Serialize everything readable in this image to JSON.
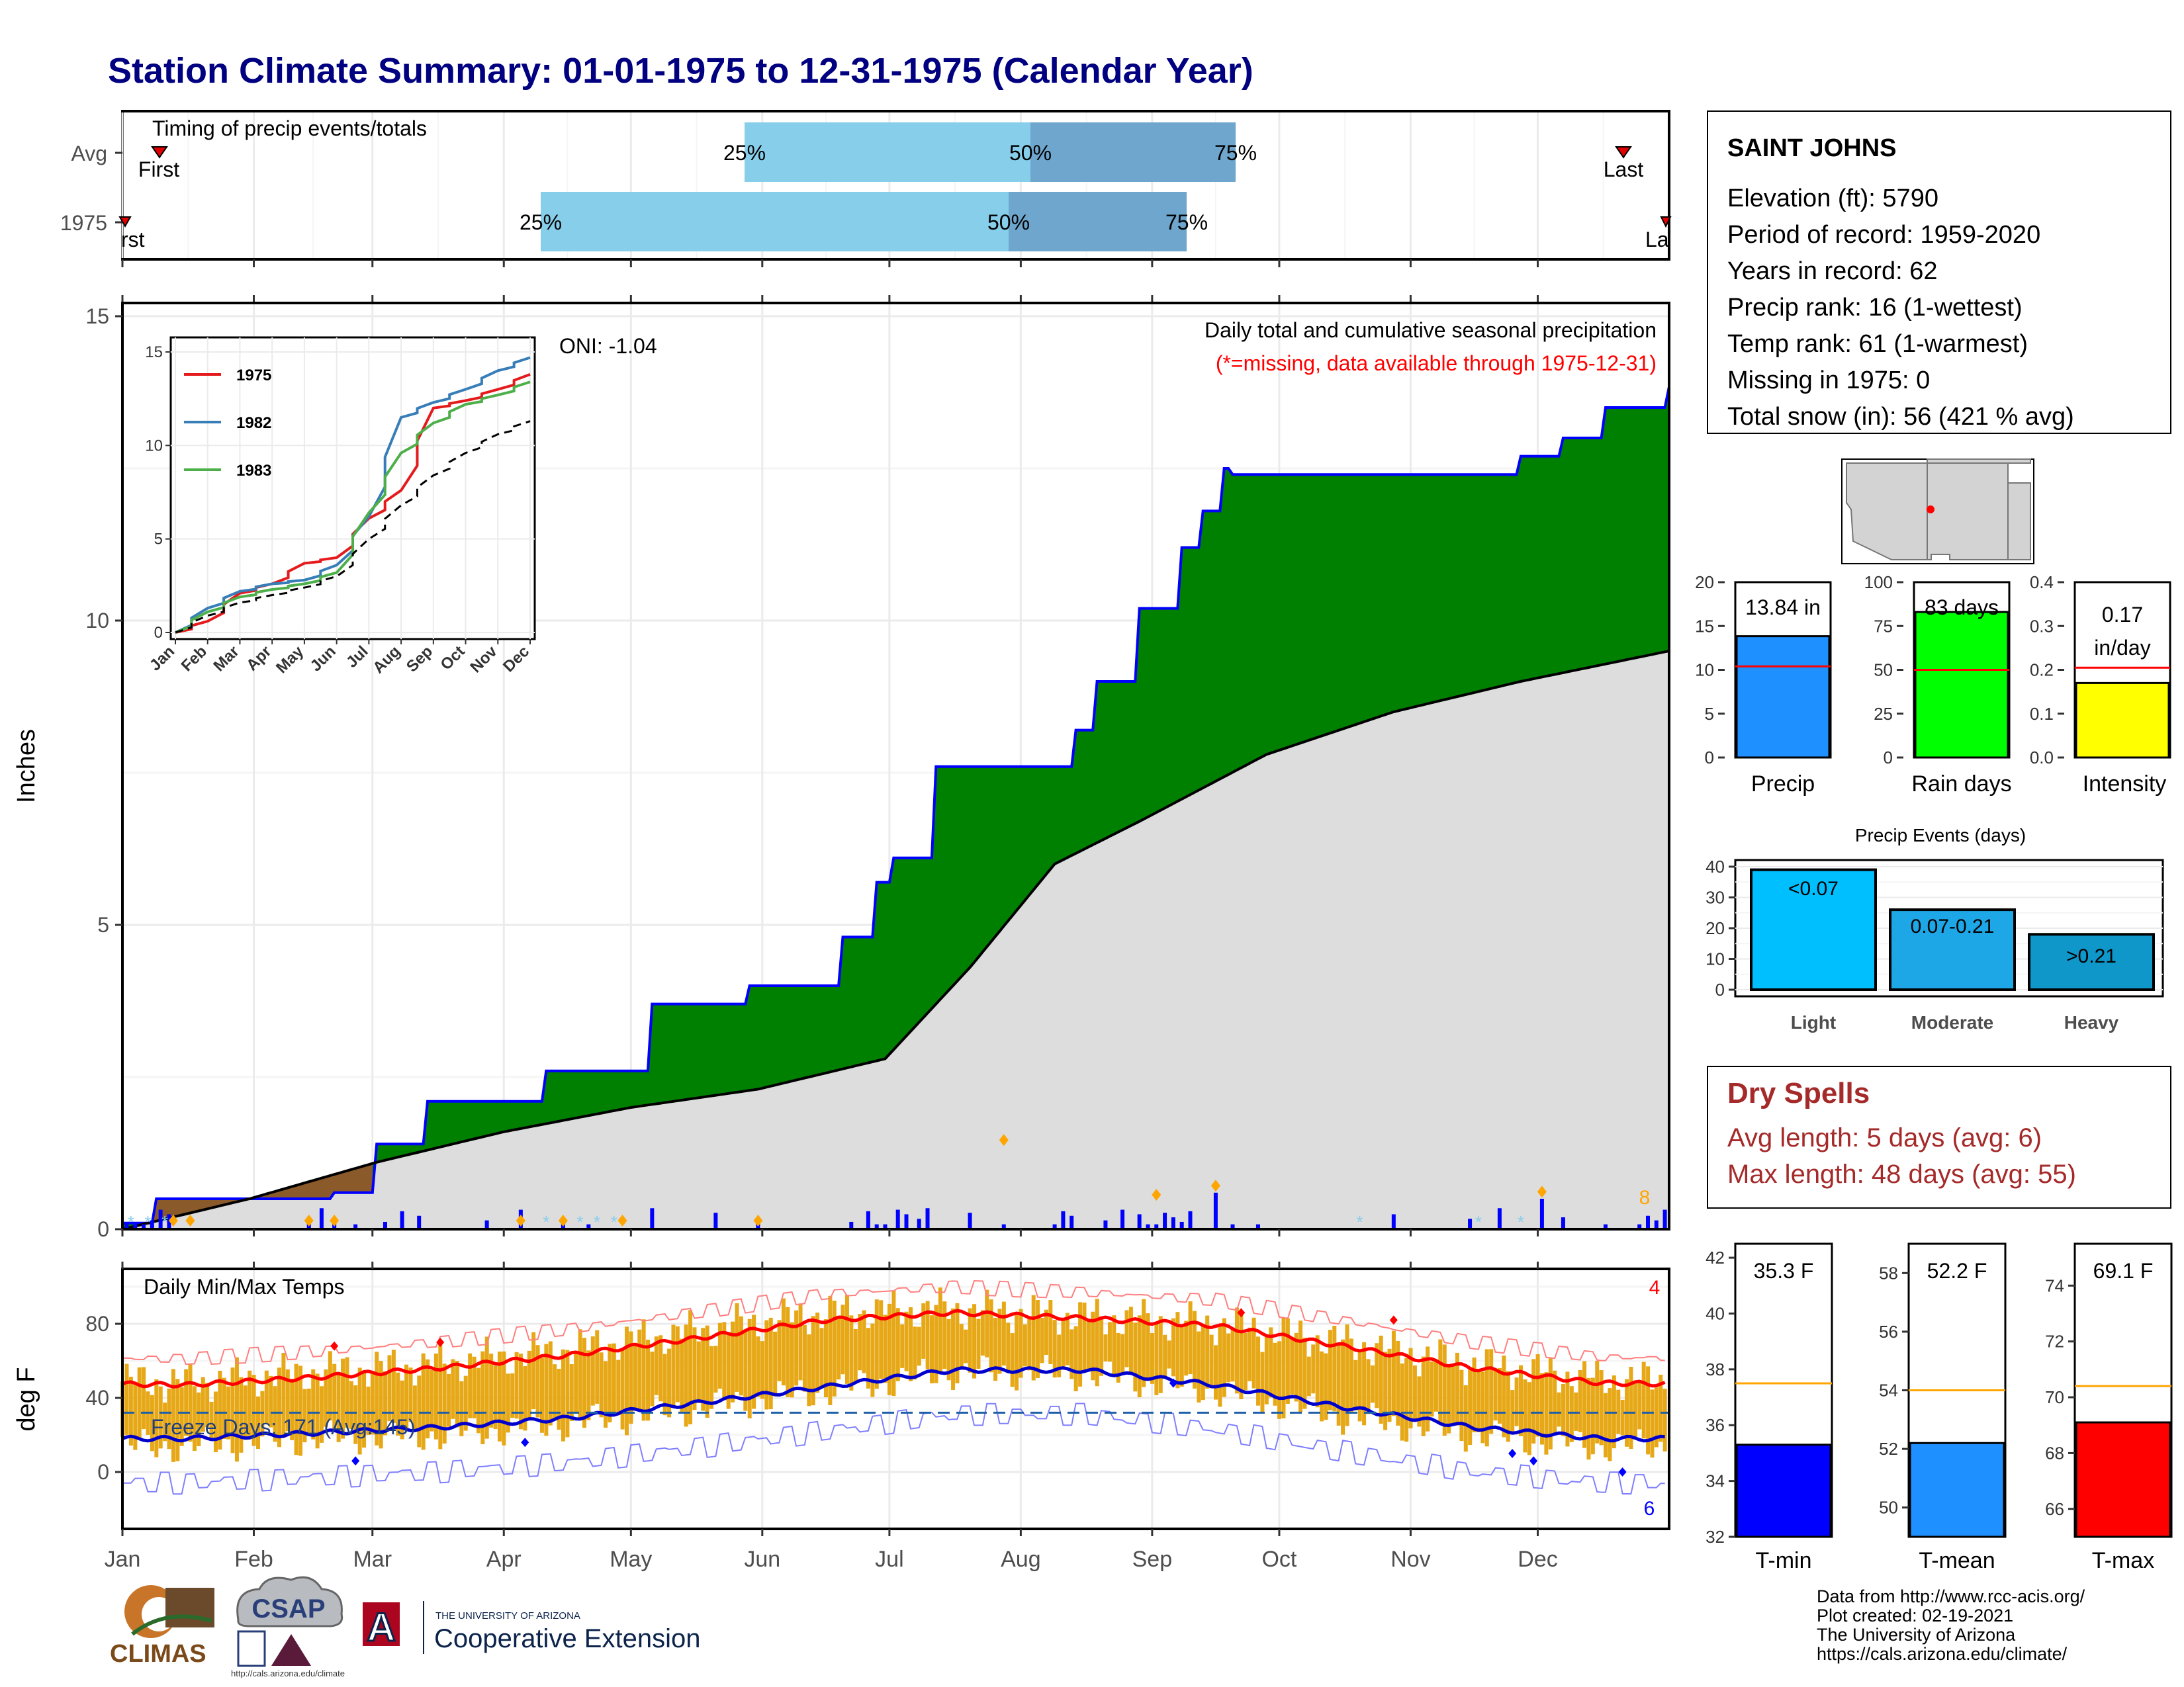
{
  "title": "Station Climate Summary: 01-01-1975 to 12-31-1975 (Calendar Year)",
  "timing": {
    "label": "Timing of precip events/totals",
    "rows": [
      {
        "name": "Avg",
        "first": "First",
        "last": "Last",
        "q25": "25%",
        "q50": "50%",
        "q75": "75%"
      },
      {
        "name": "1975",
        "first": "rst",
        "last": "La",
        "q25": "25%",
        "q50": "50%",
        "q75": "75%"
      }
    ]
  },
  "main": {
    "ylabel": "Inches",
    "yticks": [
      "0",
      "5",
      "10",
      "15"
    ],
    "oni": "ONI: -1.04",
    "note1": "Daily total and cumulative seasonal precipitation",
    "note2": "(*=missing, data available through 1975-12-31)",
    "count_label": "8"
  },
  "inset": {
    "yticks": [
      "0",
      "5",
      "10",
      "15"
    ],
    "months": [
      "Jan",
      "Feb",
      "Mar",
      "Apr",
      "May",
      "Jun",
      "Jul",
      "Aug",
      "Sep",
      "Oct",
      "Nov",
      "Dec"
    ],
    "legend": [
      "1975",
      "1982",
      "1983"
    ]
  },
  "temps": {
    "label": "Daily Min/Max Temps",
    "ylabel": "deg F",
    "yticks": [
      "0",
      "40",
      "80"
    ],
    "freeze": "Freeze Days: 171 (Avg:145)",
    "hot_count": "4",
    "cold_count": "6"
  },
  "months": [
    "Jan",
    "Feb",
    "Mar",
    "Apr",
    "May",
    "Jun",
    "Jul",
    "Aug",
    "Sep",
    "Oct",
    "Nov",
    "Dec"
  ],
  "station": {
    "name": "SAINT JOHNS",
    "lines": [
      "Elevation (ft): 5790",
      "Period of record: 1959-2020",
      "Years in record: 62",
      "Precip rank: 16 (1-wettest)",
      "Temp rank: 61 (1-warmest)",
      "Missing in 1975: 0",
      "Total snow (in): 56 (421 % avg)"
    ]
  },
  "mini_bars": [
    {
      "label": "Precip",
      "value_text": "13.84 in",
      "yticks": [
        "0",
        "5",
        "10",
        "15",
        "20"
      ],
      "color": "#1e90ff"
    },
    {
      "label": "Rain days",
      "value_text": "83 days",
      "yticks": [
        "0",
        "25",
        "50",
        "75",
        "100"
      ],
      "color": "#00ff00"
    },
    {
      "label": "Intensity",
      "value_text": "0.17",
      "value_text2": "in/day",
      "yticks": [
        "0.0",
        "0.1",
        "0.2",
        "0.3",
        "0.4"
      ],
      "color": "#ffff00"
    }
  ],
  "events": {
    "title": "Precip Events (days)",
    "yticks": [
      "0",
      "10",
      "20",
      "30",
      "40"
    ],
    "cats": [
      "Light",
      "Moderate",
      "Heavy"
    ],
    "bar_labels": [
      "<0.07",
      "0.07-0.21",
      ">0.21"
    ]
  },
  "dry": {
    "title": "Dry Spells",
    "avg": "Avg length: 5 days (avg: 6)",
    "max": "Max length: 48 days (avg: 55)"
  },
  "tbars": [
    {
      "label": "T-min",
      "value_text": "35.3 F",
      "yticks": [
        "32",
        "34",
        "36",
        "38",
        "40",
        "42"
      ],
      "color": "#0000ff"
    },
    {
      "label": "T-mean",
      "value_text": "52.2 F",
      "yticks": [
        "50",
        "52",
        "54",
        "56",
        "58"
      ],
      "color": "#1e90ff"
    },
    {
      "label": "T-max",
      "value_text": "69.1 F",
      "yticks": [
        "66",
        "68",
        "70",
        "72",
        "74"
      ],
      "color": "#ff0000"
    }
  ],
  "credits": [
    "Data from http://www.rcc-acis.org/",
    "Plot created: 02-19-2021",
    "The University of Arizona",
    "https://cals.arizona.edu/climate/"
  ],
  "logos": {
    "climas": "CLIMAS",
    "csap": "CSAP",
    "csap_url": "http://cals.arizona.edu/climate",
    "ua_small": "THE UNIVERSITY OF ARIZONA",
    "ua_big": "Cooperative Extension",
    "ua_letter": "A"
  },
  "colors": {
    "title": "#000080",
    "green": "#008000",
    "grey": "#dddddd",
    "blue": "#0000ff",
    "orange": "#e6a817",
    "light_blue": "#87ceeb",
    "steel_blue": "#6ea6cd",
    "dry_red": "#a52a2a"
  },
  "chart_data": [
    {
      "type": "area",
      "title": "Daily total and cumulative seasonal precipitation",
      "ylabel": "Inches",
      "ylim": [
        0,
        15
      ],
      "x_months": [
        "Jan",
        "Feb",
        "Mar",
        "Apr",
        "May",
        "Jun",
        "Jul",
        "Aug",
        "Sep",
        "Oct",
        "Nov",
        "Dec"
      ],
      "series": [
        {
          "name": "1975",
          "x_day": [
            0,
            8,
            50,
            60,
            72,
            80,
            100,
            125,
            148,
            165,
            170,
            178,
            182,
            192,
            210,
            225,
            230,
            240,
            250,
            255,
            260,
            262,
            268,
            300,
            330,
            340,
            350,
            365
          ],
          "y": [
            0.1,
            0.5,
            0.6,
            1.4,
            2.1,
            2.1,
            2.6,
            3.7,
            4.0,
            4.0,
            4.8,
            5.7,
            6.1,
            7.6,
            7.6,
            8.2,
            9.0,
            10.2,
            11.2,
            11.8,
            12.5,
            12.4,
            12.4,
            12.4,
            12.7,
            13.0,
            13.5,
            13.84
          ]
        },
        {
          "name": "Avg",
          "x_day": [
            0,
            30,
            60,
            90,
            120,
            150,
            180,
            200,
            220,
            240,
            270,
            300,
            330,
            365
          ],
          "y": [
            0,
            0.5,
            1.1,
            1.6,
            2.0,
            2.3,
            2.8,
            4.3,
            6.0,
            6.7,
            7.8,
            8.5,
            9.0,
            9.5
          ]
        }
      ],
      "daily_max_points": [
        {
          "day": 208,
          "y": 1.4
        },
        {
          "day": 244,
          "y": 0.5
        },
        {
          "day": 258,
          "y": 0.65
        },
        {
          "day": 335,
          "y": 0.55
        }
      ]
    },
    {
      "type": "line",
      "title": "",
      "ylim": [
        0,
        15
      ],
      "series": [
        {
          "name": "1975",
          "values": [
            0,
            0.6,
            2.1,
            2.6,
            3.7,
            4.0,
            6.1,
            7.6,
            12.0,
            12.4,
            13.0,
            13.8
          ]
        },
        {
          "name": "1982",
          "values": [
            0,
            1.3,
            2.2,
            2.6,
            2.8,
            3.6,
            6.2,
            11.5,
            12.3,
            13.0,
            14.0,
            14.7
          ]
        },
        {
          "name": "1983",
          "values": [
            0,
            1.1,
            1.9,
            2.3,
            2.6,
            3.2,
            6.4,
            9.6,
            11.2,
            12.2,
            12.7,
            13.4
          ]
        },
        {
          "name": "",
          "values": [
            0,
            0.9,
            1.6,
            2.0,
            2.4,
            3.0,
            5.0,
            6.8,
            8.4,
            9.6,
            10.6,
            11.3
          ]
        }
      ]
    },
    {
      "type": "bar",
      "title": "Daily Min/Max Temps",
      "ylabel": "deg F",
      "ylim": [
        -25,
        110
      ],
      "categories": [
        "Jan",
        "Feb",
        "Mar",
        "Apr",
        "May",
        "Jun",
        "Jul",
        "Aug",
        "Sep",
        "Oct",
        "Nov",
        "Dec"
      ],
      "series": [
        {
          "name": "normal max",
          "values": [
            47,
            51,
            56,
            63,
            72,
            82,
            86,
            83,
            79,
            68,
            56,
            48
          ]
        },
        {
          "name": "normal min",
          "values": [
            18,
            21,
            24,
            29,
            37,
            46,
            55,
            55,
            47,
            35,
            24,
            18
          ]
        },
        {
          "name": "1975 max",
          "values": [
            48,
            54,
            58,
            66,
            76,
            86,
            88,
            84,
            80,
            70,
            58,
            50
          ]
        },
        {
          "name": "1975 min",
          "values": [
            14,
            18,
            20,
            26,
            34,
            44,
            54,
            53,
            44,
            30,
            20,
            14
          ]
        }
      ],
      "freeze_line": 32
    },
    {
      "type": "bar",
      "categories": [
        "Precip",
        "Rain days",
        "Intensity"
      ],
      "values": [
        13.84,
        83,
        0.17
      ],
      "averages": [
        10.4,
        50,
        0.205
      ],
      "ylims": [
        [
          0,
          20
        ],
        [
          0,
          100
        ],
        [
          0,
          0.4
        ]
      ]
    },
    {
      "type": "bar",
      "title": "Precip Events (days)",
      "categories": [
        "Light",
        "Moderate",
        "Heavy"
      ],
      "values": [
        39,
        26,
        18
      ],
      "ylim": [
        0,
        40
      ]
    },
    {
      "type": "bar",
      "categories": [
        "T-min",
        "T-mean",
        "T-max"
      ],
      "values": [
        35.3,
        52.2,
        69.1
      ],
      "averages": [
        37.5,
        54.0,
        70.4
      ],
      "ylims": [
        [
          32,
          42.5
        ],
        [
          49,
          59
        ],
        [
          65,
          75.5
        ]
      ]
    }
  ]
}
